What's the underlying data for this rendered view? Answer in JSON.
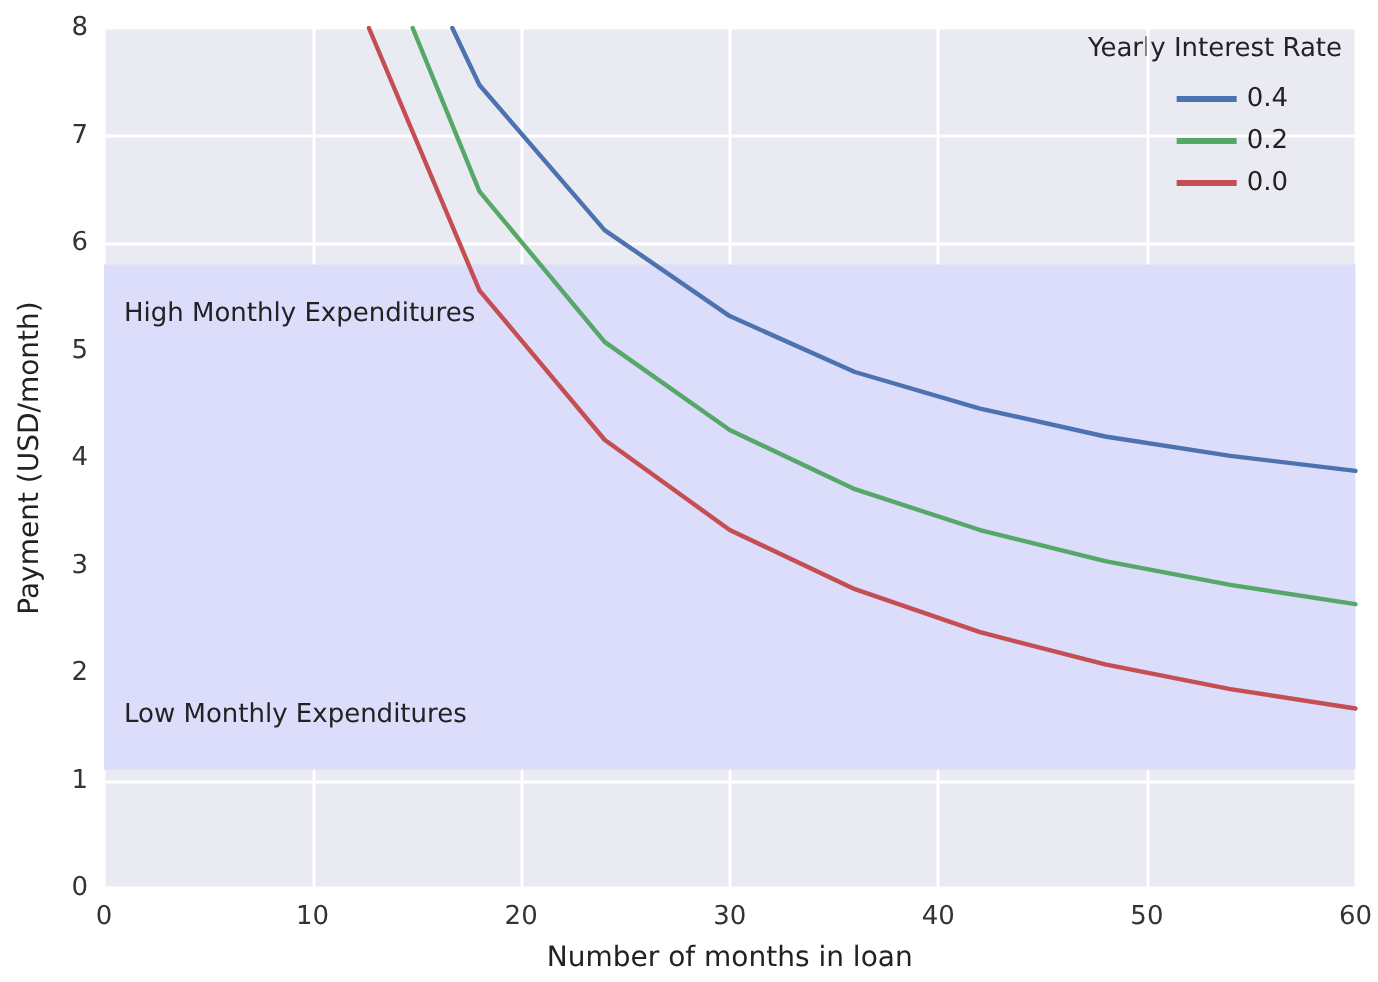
{
  "chart_data": {
    "type": "line",
    "xlabel": "Number of months in loan",
    "ylabel": "Payment (USD/month)",
    "legend_title": "Yearly Interest Rate",
    "legend": "top right",
    "grid": true,
    "marker": "none",
    "line_style": "solid",
    "xlim": [
      0,
      60
    ],
    "ylim": [
      0,
      8
    ],
    "xticks": [
      0,
      10,
      20,
      30,
      40,
      50,
      60
    ],
    "yticks": [
      0,
      1,
      2,
      3,
      4,
      5,
      6,
      7,
      8
    ],
    "series": [
      {
        "name": "0.4",
        "color": "#4c72b0",
        "x": [
          16.7,
          18,
          24,
          30,
          36,
          42,
          48,
          54,
          60
        ],
        "values": [
          8,
          7.47,
          6.12,
          5.32,
          4.8,
          4.46,
          4.2,
          4.02,
          3.88
        ]
      },
      {
        "name": "0.2",
        "color": "#55a868",
        "x": [
          14.8,
          18,
          24,
          30,
          36,
          42,
          48,
          54,
          60
        ],
        "values": [
          8,
          6.48,
          5.08,
          4.26,
          3.71,
          3.33,
          3.04,
          2.82,
          2.64
        ]
      },
      {
        "name": "0.0",
        "color": "#c44e52",
        "x": [
          12.7,
          18,
          24,
          30,
          36,
          42,
          48,
          54,
          60
        ],
        "values": [
          8,
          5.56,
          4.17,
          3.33,
          2.78,
          2.38,
          2.08,
          1.85,
          1.67
        ]
      }
    ],
    "bands": [
      {
        "axis": "y",
        "from": 1.1,
        "to": 5.8,
        "color": "#dcdcfb"
      }
    ],
    "annotations": [
      "High Monthly Expenditures",
      "Low Monthly Expenditures"
    ]
  }
}
